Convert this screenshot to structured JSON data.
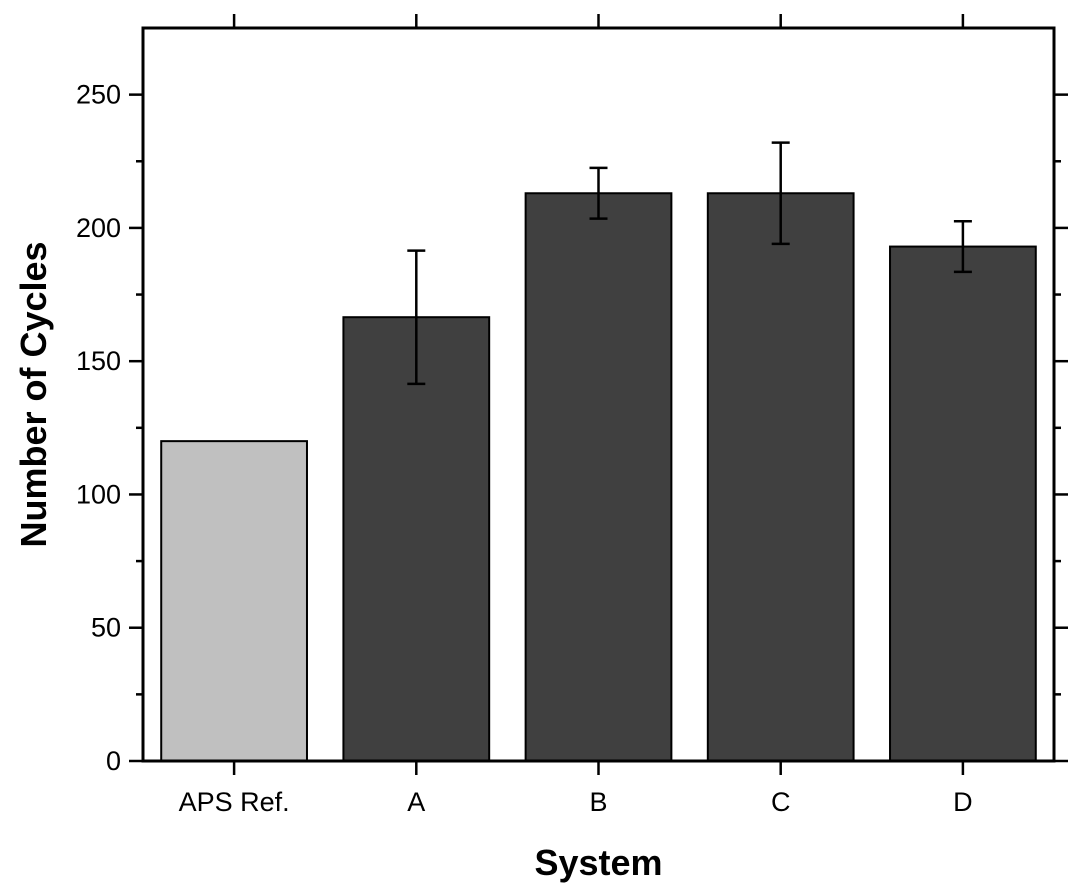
{
  "chart_data": {
    "type": "bar",
    "title": "",
    "xlabel": "System",
    "ylabel": "Number of Cycles",
    "ylim": [
      0,
      275
    ],
    "yticks": [
      0,
      50,
      100,
      150,
      200,
      250
    ],
    "ytick_labels": [
      "0",
      "50",
      "100",
      "150",
      "200",
      "250"
    ],
    "grid": false,
    "categories": [
      "APS Ref.",
      "A",
      "B",
      "C",
      "D"
    ],
    "values": [
      120,
      166.5,
      213,
      213,
      193
    ],
    "errors": [
      null,
      25,
      9.5,
      19,
      9.5
    ],
    "bar_colors": [
      "#c0c0c0",
      "#404040",
      "#404040",
      "#404040",
      "#404040"
    ]
  }
}
